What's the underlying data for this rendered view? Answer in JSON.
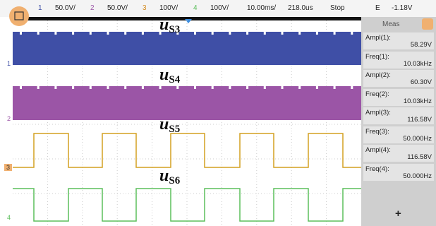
{
  "toolbar": {
    "channels": [
      {
        "number": "1",
        "scale": "50.0V/"
      },
      {
        "number": "2",
        "scale": "50.0V/"
      },
      {
        "number": "3",
        "scale": "100V/"
      },
      {
        "number": "4",
        "scale": "100V/"
      }
    ],
    "timebase": "10.00ms/",
    "delay": "218.0us",
    "status": "Stop",
    "trigger_mode": "E",
    "trigger_level": "-1.18V"
  },
  "waveform_labels": [
    {
      "base": "u",
      "sub": "S3"
    },
    {
      "base": "u",
      "sub": "S4"
    },
    {
      "base": "u",
      "sub": "S5"
    },
    {
      "base": "u",
      "sub": "S6"
    }
  ],
  "channel_markers": [
    "1",
    "2",
    "3",
    "4"
  ],
  "meas_panel": {
    "title": "Meas",
    "items": [
      {
        "label": "Ampl(1):",
        "value": "58.29V"
      },
      {
        "label": "Freq(1):",
        "value": "10.03kHz"
      },
      {
        "label": "Ampl(2):",
        "value": "60.30V"
      },
      {
        "label": "Freq(2):",
        "value": "10.03kHz"
      },
      {
        "label": "Ampl(3):",
        "value": "116.58V"
      },
      {
        "label": "Freq(3):",
        "value": "50.000Hz"
      },
      {
        "label": "Ampl(4):",
        "value": "116.58V"
      },
      {
        "label": "Freq(4):",
        "value": "50.000Hz"
      }
    ],
    "add": "+"
  }
}
